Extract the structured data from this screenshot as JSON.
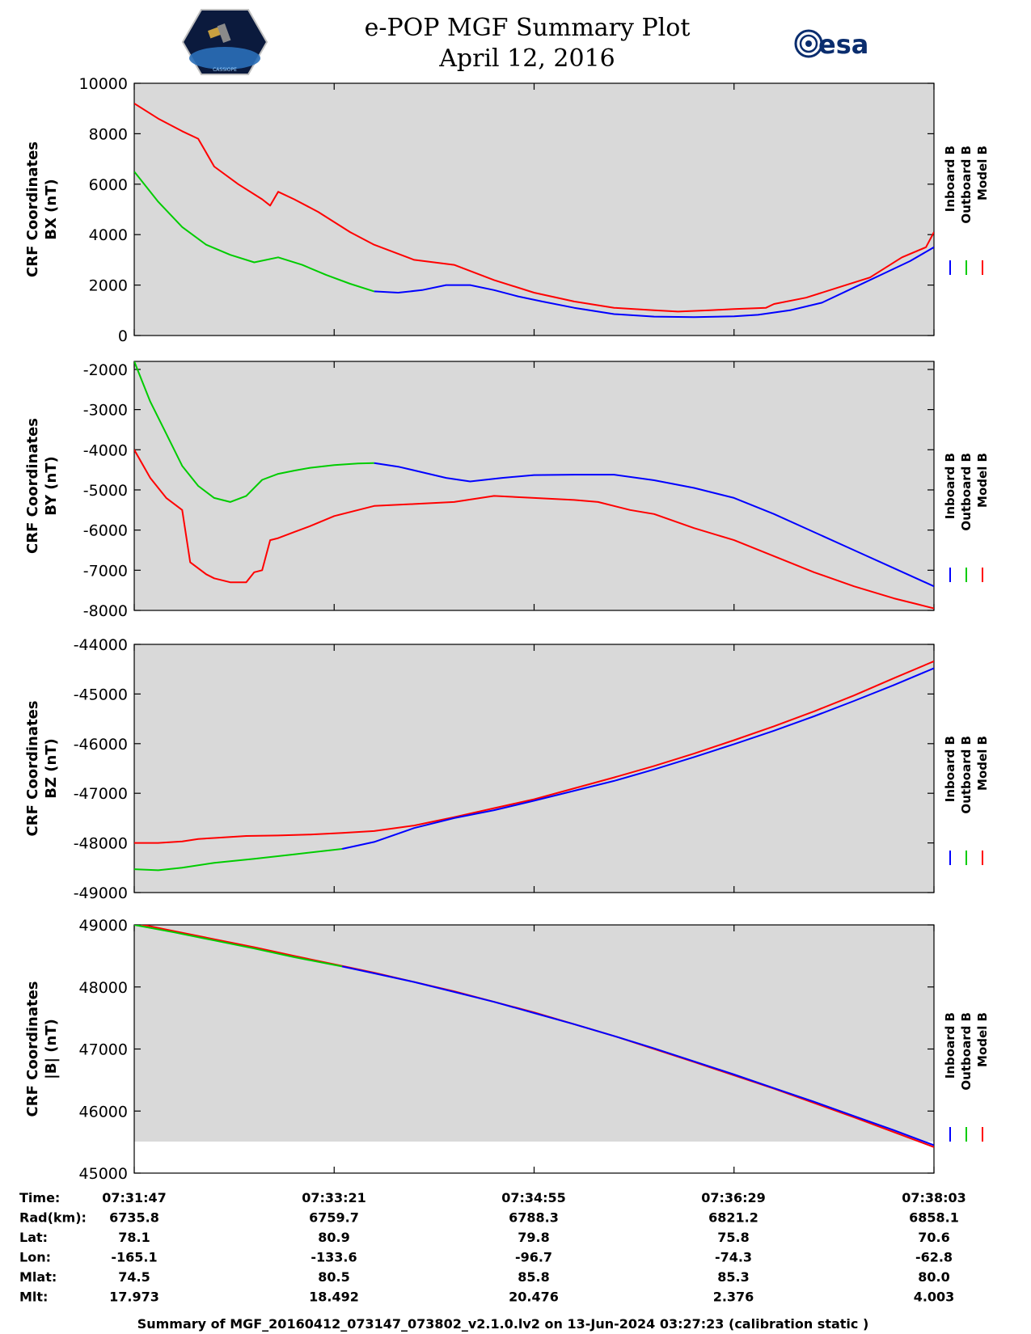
{
  "title": "e-POP MGF Summary Plot",
  "subtitle": "April 12, 2016",
  "logo_right_text": "esa",
  "logo_left_text": "CASSIOPE",
  "footer": "Summary of MGF_20160412_073147_073802_v2.1.0.lv2 on 13-Jun-2024 03:27:23 (calibration static )",
  "colors": {
    "inboard": "#0000ff",
    "outboard": "#00cc00",
    "model": "#ff0000",
    "panel_bg": "#d9d9d9"
  },
  "legend": [
    "Inboard B",
    "Outboard B",
    "Model B"
  ],
  "info_rows": [
    {
      "label": "Time:",
      "values": [
        "07:31:47",
        "07:33:21",
        "07:34:55",
        "07:36:29",
        "07:38:03"
      ]
    },
    {
      "label": "Rad(km):",
      "values": [
        "6735.8",
        "6759.7",
        "6788.3",
        "6821.2",
        "6858.1"
      ]
    },
    {
      "label": "Lat:",
      "values": [
        "78.1",
        "80.9",
        "79.8",
        "75.8",
        "70.6"
      ]
    },
    {
      "label": "Lon:",
      "values": [
        "-165.1",
        "-133.6",
        "-96.7",
        "-74.3",
        "-62.8"
      ]
    },
    {
      "label": "Mlat:",
      "values": [
        "74.5",
        "80.5",
        "85.8",
        "85.3",
        "80.0"
      ]
    },
    {
      "label": "Mlt:",
      "values": [
        "17.973",
        "18.492",
        "20.476",
        "2.376",
        "4.003"
      ]
    }
  ],
  "chart_data": [
    {
      "type": "line",
      "id": "bx",
      "ylabel_line1": "CRF Coordinates",
      "ylabel_line2": "BX (nT)",
      "ylim": [
        0,
        10000
      ],
      "yticks": [
        0,
        2000,
        4000,
        6000,
        8000,
        10000
      ],
      "xlim": [
        0,
        1
      ],
      "xticks": [
        0,
        0.25,
        0.5,
        0.75,
        1
      ],
      "series": [
        {
          "name": "Outboard B",
          "color": "outboard",
          "x": [
            0,
            0.03,
            0.06,
            0.09,
            0.12,
            0.15,
            0.18,
            0.21,
            0.24,
            0.27,
            0.3
          ],
          "y": [
            6500,
            5300,
            4300,
            3600,
            3200,
            2900,
            3100,
            2800,
            2400,
            2050,
            1750
          ]
        },
        {
          "name": "Inboard B",
          "color": "inboard",
          "x": [
            0.3,
            0.33,
            0.36,
            0.39,
            0.42,
            0.45,
            0.48,
            0.51,
            0.55,
            0.6,
            0.65,
            0.7,
            0.75,
            0.78,
            0.82,
            0.86,
            0.9,
            0.94,
            0.97,
            1.0
          ],
          "y": [
            1750,
            1700,
            1800,
            2000,
            2000,
            1800,
            1550,
            1350,
            1100,
            850,
            750,
            730,
            760,
            820,
            1000,
            1300,
            1900,
            2500,
            2950,
            3500
          ]
        },
        {
          "name": "Model B",
          "color": "model",
          "x": [
            0,
            0.03,
            0.06,
            0.08,
            0.1,
            0.13,
            0.16,
            0.17,
            0.18,
            0.2,
            0.23,
            0.27,
            0.3,
            0.35,
            0.4,
            0.45,
            0.5,
            0.55,
            0.6,
            0.65,
            0.68,
            0.72,
            0.75,
            0.79,
            0.8,
            0.84,
            0.88,
            0.92,
            0.96,
            0.99,
            1.0
          ],
          "y": [
            9200,
            8600,
            8100,
            7800,
            6700,
            6000,
            5400,
            5150,
            5700,
            5400,
            4900,
            4100,
            3600,
            3000,
            2800,
            2200,
            1700,
            1350,
            1100,
            1000,
            950,
            1000,
            1050,
            1100,
            1250,
            1500,
            1900,
            2300,
            3100,
            3500,
            4100
          ]
        }
      ]
    },
    {
      "type": "line",
      "id": "by",
      "ylabel_line1": "CRF Coordinates",
      "ylabel_line2": "BY (nT)",
      "ylim": [
        -8000,
        -1800
      ],
      "yticks": [
        -8000,
        -7000,
        -6000,
        -5000,
        -4000,
        -3000,
        -2000
      ],
      "xlim": [
        0,
        1
      ],
      "xticks": [
        0,
        0.25,
        0.5,
        0.75,
        1
      ],
      "series": [
        {
          "name": "Outboard B",
          "color": "outboard",
          "x": [
            0,
            0.02,
            0.04,
            0.06,
            0.08,
            0.1,
            0.12,
            0.14,
            0.16,
            0.18,
            0.2,
            0.22,
            0.25,
            0.28,
            0.3
          ],
          "y": [
            -1800,
            -2800,
            -3600,
            -4400,
            -4900,
            -5200,
            -5300,
            -5150,
            -4750,
            -4600,
            -4520,
            -4450,
            -4380,
            -4340,
            -4330
          ]
        },
        {
          "name": "Inboard B",
          "color": "inboard",
          "x": [
            0.3,
            0.33,
            0.36,
            0.39,
            0.42,
            0.46,
            0.5,
            0.55,
            0.6,
            0.65,
            0.7,
            0.75,
            0.8,
            0.85,
            0.9,
            0.95,
            1.0
          ],
          "y": [
            -4330,
            -4420,
            -4560,
            -4700,
            -4790,
            -4700,
            -4630,
            -4620,
            -4620,
            -4760,
            -4950,
            -5200,
            -5600,
            -6050,
            -6500,
            -6950,
            -7400
          ]
        },
        {
          "name": "Model B",
          "color": "model",
          "x": [
            0,
            0.02,
            0.04,
            0.06,
            0.07,
            0.09,
            0.1,
            0.12,
            0.14,
            0.15,
            0.16,
            0.17,
            0.18,
            0.2,
            0.22,
            0.25,
            0.28,
            0.3,
            0.35,
            0.4,
            0.45,
            0.5,
            0.55,
            0.58,
            0.62,
            0.65,
            0.7,
            0.75,
            0.8,
            0.85,
            0.9,
            0.95,
            0.98,
            1.0
          ],
          "y": [
            -4000,
            -4700,
            -5200,
            -5500,
            -6800,
            -7100,
            -7200,
            -7300,
            -7300,
            -7050,
            -7000,
            -6250,
            -6200,
            -6050,
            -5900,
            -5650,
            -5500,
            -5400,
            -5350,
            -5300,
            -5150,
            -5200,
            -5250,
            -5300,
            -5500,
            -5600,
            -5950,
            -6250,
            -6650,
            -7050,
            -7400,
            -7700,
            -7850,
            -7950
          ]
        }
      ]
    },
    {
      "type": "line",
      "id": "bz",
      "ylabel_line1": "CRF Coordinates",
      "ylabel_line2": "BZ (nT)",
      "ylim": [
        -49000,
        -44000
      ],
      "yticks": [
        -49000,
        -48000,
        -47000,
        -46000,
        -45000,
        -44000
      ],
      "xlim": [
        0,
        1
      ],
      "xticks": [
        0,
        0.25,
        0.5,
        0.75,
        1
      ],
      "series": [
        {
          "name": "Outboard B",
          "color": "outboard",
          "x": [
            0,
            0.03,
            0.06,
            0.1,
            0.15,
            0.2,
            0.26
          ],
          "y": [
            -48530,
            -48550,
            -48500,
            -48400,
            -48320,
            -48230,
            -48120
          ]
        },
        {
          "name": "Inboard B",
          "color": "inboard",
          "x": [
            0.26,
            0.3,
            0.35,
            0.4,
            0.45,
            0.5,
            0.55,
            0.6,
            0.65,
            0.7,
            0.75,
            0.8,
            0.85,
            0.9,
            0.95,
            1.0
          ],
          "y": [
            -48120,
            -47980,
            -47700,
            -47500,
            -47340,
            -47150,
            -46950,
            -46750,
            -46520,
            -46270,
            -46010,
            -45740,
            -45450,
            -45140,
            -44820,
            -44480
          ]
        },
        {
          "name": "Model B",
          "color": "model",
          "x": [
            0,
            0.03,
            0.06,
            0.08,
            0.1,
            0.14,
            0.18,
            0.22,
            0.26,
            0.3,
            0.35,
            0.4,
            0.45,
            0.5,
            0.55,
            0.6,
            0.65,
            0.7,
            0.75,
            0.8,
            0.85,
            0.9,
            0.95,
            1.0
          ],
          "y": [
            -48000,
            -48000,
            -47970,
            -47920,
            -47900,
            -47860,
            -47850,
            -47830,
            -47800,
            -47760,
            -47650,
            -47480,
            -47300,
            -47120,
            -46900,
            -46680,
            -46450,
            -46200,
            -45930,
            -45650,
            -45350,
            -45030,
            -44680,
            -44340
          ]
        }
      ]
    },
    {
      "type": "line",
      "id": "bmag",
      "ylabel_line1": "CRF Coordinates",
      "ylabel_line2": "|B| (nT)",
      "ylim": [
        45000,
        49000
      ],
      "yticks": [
        45000,
        46000,
        47000,
        48000,
        49000
      ],
      "xlim": [
        0,
        1
      ],
      "xticks": [
        0,
        0.25,
        0.5,
        0.75,
        1
      ],
      "series": [
        {
          "name": "Outboard B",
          "color": "outboard",
          "x": [
            0,
            0.05,
            0.1,
            0.15,
            0.2,
            0.26
          ],
          "y": [
            49000,
            48880,
            48750,
            48620,
            48480,
            48330
          ]
        },
        {
          "name": "Inboard B",
          "color": "inboard",
          "x": [
            0.26,
            0.3,
            0.35,
            0.4,
            0.45,
            0.5,
            0.55,
            0.6,
            0.65,
            0.7,
            0.75,
            0.8,
            0.85,
            0.9,
            0.95,
            1.0
          ],
          "y": [
            48330,
            48220,
            48080,
            47920,
            47760,
            47580,
            47400,
            47210,
            47010,
            46800,
            46590,
            46370,
            46150,
            45920,
            45690,
            45450
          ]
        },
        {
          "name": "Model B",
          "color": "model",
          "x": [
            0,
            0.05,
            0.1,
            0.15,
            0.2,
            0.26,
            0.3,
            0.4,
            0.5,
            0.6,
            0.7,
            0.8,
            0.9,
            1.0
          ],
          "y": [
            49030,
            48900,
            48770,
            48640,
            48500,
            48340,
            48230,
            47930,
            47590,
            47210,
            46790,
            46360,
            45900,
            45420
          ]
        }
      ]
    }
  ]
}
